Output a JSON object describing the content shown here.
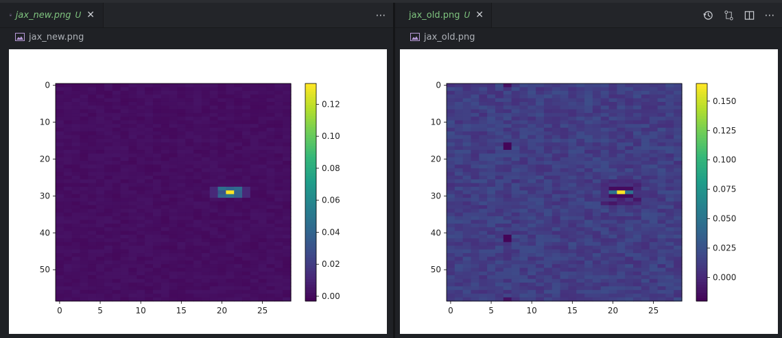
{
  "left_pane": {
    "tab": {
      "label": "jax_new.png",
      "badge": "U"
    },
    "breadcrumb": "jax_new.png",
    "more_icon": "ellipsis-icon",
    "chart_data": {
      "type": "heatmap",
      "y_ticks": [
        "0",
        "10",
        "20",
        "30",
        "40",
        "50"
      ],
      "x_ticks": [
        "0",
        "5",
        "10",
        "15",
        "20",
        "25"
      ],
      "colorbar_ticks": [
        "0.12",
        "0.10",
        "0.08",
        "0.06",
        "0.04",
        "0.02",
        "0.00"
      ],
      "colorbar_range": [
        -0.003,
        0.133
      ],
      "colormap": "viridis",
      "rows": 59,
      "cols": 29,
      "peak": {
        "row": 29,
        "col": 21,
        "value": 0.133
      }
    }
  },
  "right_pane": {
    "tab": {
      "label": "jax_old.png",
      "badge": "U"
    },
    "breadcrumb": "jax_old.png",
    "actions": [
      "history-icon",
      "compare-icon",
      "split-editor-icon",
      "ellipsis-icon"
    ],
    "chart_data": {
      "type": "heatmap",
      "y_ticks": [
        "0",
        "10",
        "20",
        "30",
        "40",
        "50"
      ],
      "x_ticks": [
        "0",
        "5",
        "10",
        "15",
        "20",
        "25"
      ],
      "colorbar_ticks": [
        "0.150",
        "0.125",
        "0.100",
        "0.075",
        "0.050",
        "0.025",
        "0.000"
      ],
      "colorbar_range": [
        -0.02,
        0.165
      ],
      "colormap": "viridis",
      "rows": 59,
      "cols": 29,
      "peak": {
        "row": 29,
        "col": 21,
        "value": 0.165
      }
    }
  },
  "colors": {
    "tab_label": "#7fc47f",
    "bg": "#1f2125"
  }
}
